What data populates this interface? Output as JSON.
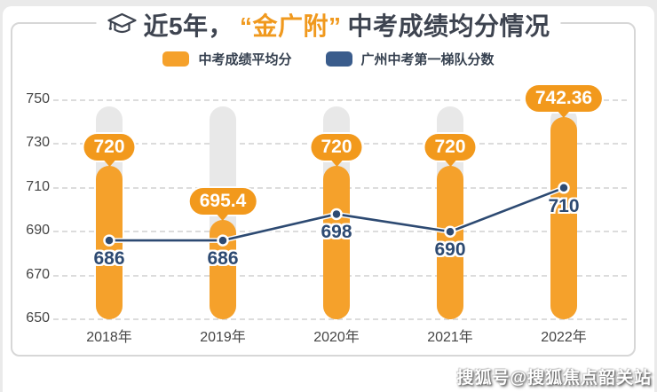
{
  "page": {
    "watermark": "搜狐号@搜狐焦点韶关站"
  },
  "header": {
    "title_prefix": "近5年，",
    "title_highlight": "“金广附”",
    "title_suffix": "中考成绩均分情况"
  },
  "legend": [
    {
      "label": "中考成绩平均分",
      "color": "#F5A12B"
    },
    {
      "label": "广州中考第一梯队分数",
      "color": "#3A5C8C"
    }
  ],
  "chart_data": {
    "type": "bar",
    "title": "近5年，“金广附”中考成绩均分情况",
    "categories": [
      "2018年",
      "2019年",
      "2020年",
      "2021年",
      "2022年"
    ],
    "series": [
      {
        "name": "中考成绩平均分",
        "type": "bar",
        "color": "#F5A12B",
        "values": [
          720,
          695.4,
          720,
          720,
          742.36
        ]
      },
      {
        "name": "广州中考第一梯队分数",
        "type": "line",
        "color": "#2D4A72",
        "values": [
          686,
          686,
          698,
          690,
          710
        ]
      }
    ],
    "ylim": [
      650,
      750
    ],
    "yticks": [
      650,
      670,
      690,
      710,
      730,
      750
    ],
    "grid": "dashed-horizontal",
    "legend_position": "top",
    "value_labels": "shown"
  },
  "colors": {
    "bar_orange": "#F5A12B",
    "badge_orange": "#F2991C",
    "line_navy": "#2D4A72",
    "dot_navy": "#2D4A72",
    "legend_navy": "#3A5C8C",
    "track_gray": "#E8E8E8",
    "title_dark": "#3E4450",
    "highlight_orange": "#F0991E",
    "grid_gray": "#DCDCDC",
    "axis_label": "#454545",
    "frame_border": "#D7D7D7",
    "page_bg": "#EAEAEA"
  }
}
